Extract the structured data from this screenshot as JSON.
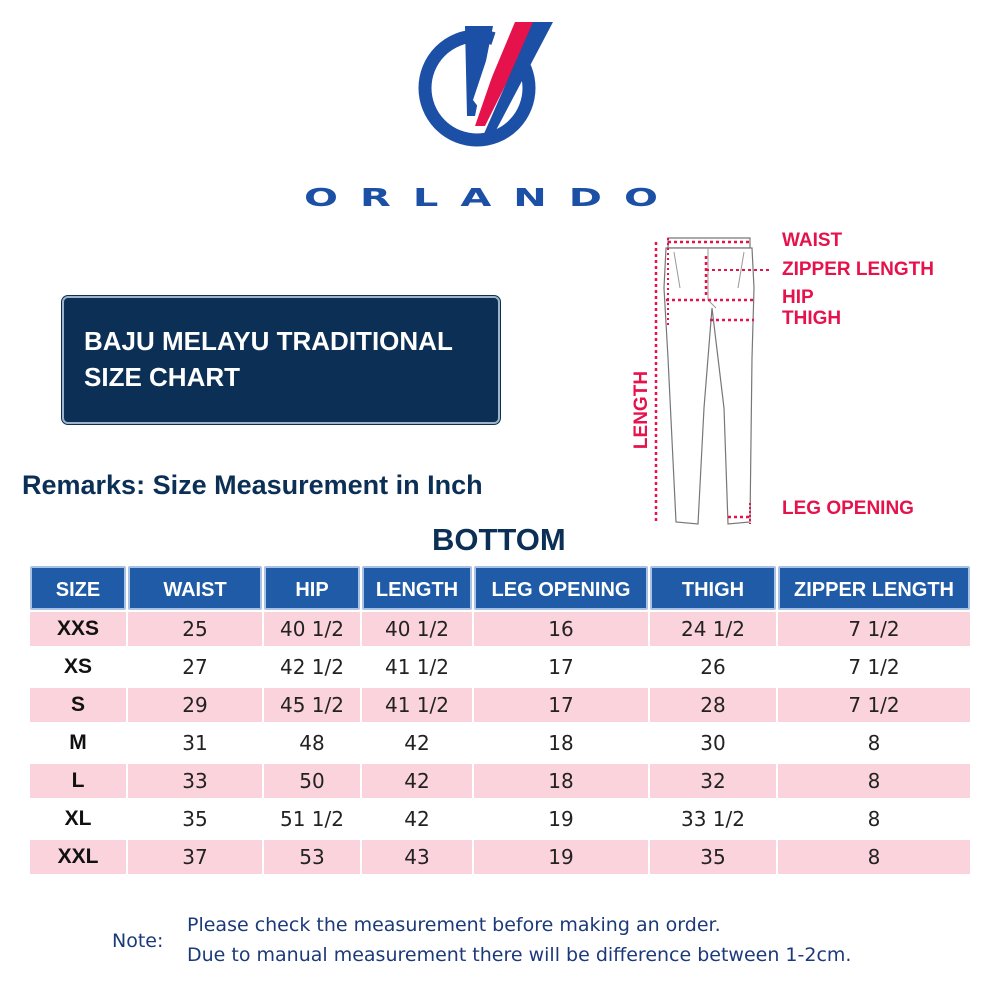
{
  "brand": {
    "name": "ORLANDO",
    "colors": {
      "blue": "#1c4fa6",
      "red": "#e5124b",
      "navy": "#0b2f55"
    }
  },
  "title": {
    "line1": "BAJU MELAYU TRADITIONAL",
    "line2": "SIZE CHART"
  },
  "remarks": "Remarks: Size  Measurement  in Inch",
  "section_title": "BOTTOM",
  "diagram": {
    "labels": {
      "waist": "WAIST",
      "zipper_length": "ZIPPER LENGTH",
      "hip": "HIP",
      "thigh": "THIGH",
      "length": "LENGTH",
      "leg_opening": "LEG OPENING"
    }
  },
  "table": {
    "headers": [
      "SIZE",
      "WAIST",
      "HIP",
      "LENGTH",
      "LEG OPENING",
      "THIGH",
      "ZIPPER LENGTH"
    ],
    "rows": [
      [
        "XXS",
        "25",
        "40 1/2",
        "40 1/2",
        "16",
        "24 1/2",
        "7 1/2"
      ],
      [
        "XS",
        "27",
        "42 1/2",
        "41 1/2",
        "17",
        "26",
        "7 1/2"
      ],
      [
        "S",
        "29",
        "45 1/2",
        "41 1/2",
        "17",
        "28",
        "7 1/2"
      ],
      [
        "M",
        "31",
        "48",
        "42",
        "18",
        "30",
        "8"
      ],
      [
        "L",
        "33",
        "50",
        "42",
        "18",
        "32",
        "8"
      ],
      [
        "XL",
        "35",
        "51 1/2",
        "42",
        "19",
        "33 1/2",
        "8"
      ],
      [
        "XXL",
        "37",
        "53",
        "43",
        "19",
        "35",
        "8"
      ]
    ],
    "row_highlight_color": "#fbd3dd",
    "header_color": "#1f5ba6"
  },
  "note": {
    "label": "Note:",
    "lines": [
      "Please check the measurement before making an order.",
      "Due to manual measurement there will be difference between 1-2cm."
    ]
  }
}
